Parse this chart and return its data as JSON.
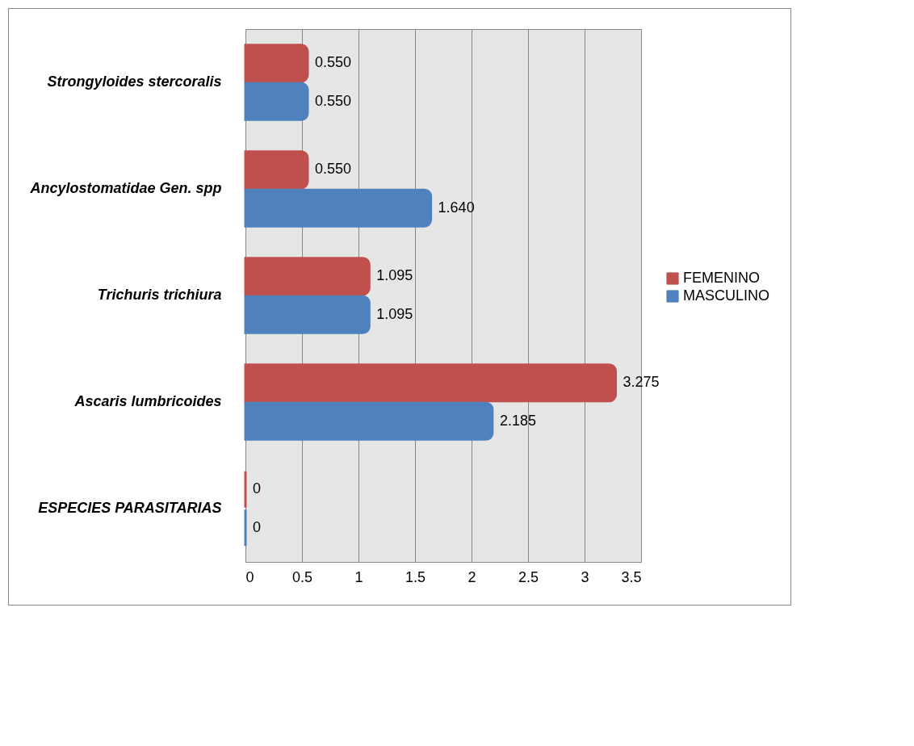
{
  "chart_data": {
    "type": "bar",
    "orientation": "horizontal",
    "categories": [
      "Strongyloides stercoralis",
      "Ancylostomatidae Gen. spp",
      "Trichuris trichiura",
      "Ascaris lumbricoides",
      "ESPECIES PARASITARIAS"
    ],
    "series": [
      {
        "name": "FEMENINO",
        "color": "#c0504d",
        "values": [
          0.55,
          0.55,
          1.095,
          3.275,
          0
        ],
        "value_labels": [
          "0.550",
          "0.550",
          "1.095",
          "3.275",
          "0"
        ]
      },
      {
        "name": "MASCULINO",
        "color": "#4f81bd",
        "values": [
          0.55,
          1.64,
          1.095,
          2.185,
          0
        ],
        "value_labels": [
          "0.550",
          "1.640",
          "1.095",
          "2.185",
          "0"
        ]
      }
    ],
    "xlim": [
      0,
      3.5
    ],
    "xticks": [
      0,
      0.5,
      1,
      1.5,
      2,
      2.5,
      3,
      3.5
    ],
    "grid": "x",
    "legend": "right"
  }
}
